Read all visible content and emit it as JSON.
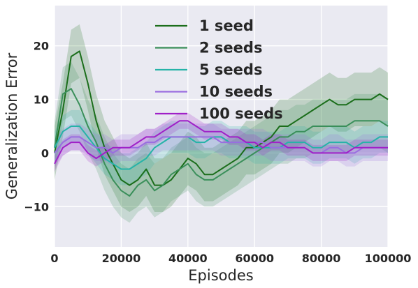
{
  "chart_data": {
    "type": "line",
    "title": "",
    "xlabel": "Episodes",
    "ylabel": "Generalization Error",
    "xlim": [
      0,
      100000
    ],
    "ylim": [
      -17.5,
      27.5
    ],
    "xticks": [
      0,
      20000,
      40000,
      60000,
      80000,
      100000
    ],
    "xtick_labels": [
      "0",
      "20000",
      "40000",
      "60000",
      "80000",
      "100000"
    ],
    "yticks": [
      -10,
      0,
      10,
      20
    ],
    "ytick_labels": [
      "−10",
      "0",
      "10",
      "20"
    ],
    "grid": true,
    "background": "#eaeaf2",
    "legend_position": "top-center",
    "x": [
      0,
      2500,
      5000,
      7500,
      10000,
      12500,
      15000,
      17500,
      20000,
      22500,
      25000,
      27500,
      30000,
      32500,
      35000,
      37500,
      40000,
      42500,
      45000,
      47500,
      50000,
      52500,
      55000,
      57500,
      60000,
      62500,
      65000,
      67500,
      70000,
      72500,
      75000,
      77500,
      80000,
      82500,
      85000,
      87500,
      90000,
      92500,
      95000,
      97500,
      100000
    ],
    "series": [
      {
        "name": "1 seed",
        "color": "#1b6e1b",
        "values": [
          0,
          8,
          18,
          19,
          13,
          6,
          1,
          -2,
          -5,
          -6,
          -5,
          -3,
          -6,
          -6,
          -5,
          -3,
          -1,
          -2,
          -4,
          -4,
          -3,
          -2,
          -1,
          1,
          1,
          2,
          3,
          5,
          5,
          6,
          7,
          8,
          9,
          10,
          9,
          9,
          10,
          10,
          10,
          11,
          10
        ],
        "band": 5
      },
      {
        "name": "2 seeds",
        "color": "#3a8f5a",
        "values": [
          1,
          11,
          12,
          9,
          5,
          2,
          -2,
          -5,
          -7,
          -8,
          -6,
          -5,
          -7,
          -6,
          -4,
          -3,
          -2,
          -4,
          -5,
          -5,
          -4,
          -3,
          -2,
          -1,
          0,
          1,
          2,
          3,
          3,
          4,
          4,
          5,
          5,
          5,
          5,
          5,
          6,
          6,
          6,
          6,
          5
        ],
        "band": 5
      },
      {
        "name": "5 seeds",
        "color": "#26b3a8",
        "values": [
          1,
          4,
          5,
          5,
          3,
          1,
          -1,
          -2,
          -3,
          -3,
          -2,
          -1,
          1,
          2,
          3,
          3,
          3,
          2,
          2,
          3,
          3,
          2,
          2,
          2,
          1,
          1,
          1,
          1,
          2,
          2,
          2,
          1,
          1,
          2,
          2,
          2,
          1,
          2,
          2,
          3,
          3
        ],
        "band": 3
      },
      {
        "name": "10 seeds",
        "color": "#9a6de0",
        "values": [
          0,
          2,
          3,
          3,
          2,
          1,
          1,
          0,
          1,
          1,
          1,
          2,
          2,
          3,
          3,
          3,
          3,
          3,
          3,
          3,
          2,
          2,
          2,
          2,
          2,
          2,
          1,
          1,
          1,
          1,
          1,
          0,
          0,
          1,
          1,
          0,
          0,
          1,
          1,
          1,
          1
        ],
        "band": 2.5
      },
      {
        "name": "100 seeds",
        "color": "#a020c8",
        "values": [
          -2,
          1,
          2,
          2,
          0,
          -1,
          0,
          1,
          1,
          1,
          2,
          3,
          3,
          4,
          5,
          6,
          6,
          5,
          4,
          4,
          4,
          3,
          3,
          2,
          2,
          1,
          2,
          2,
          1,
          1,
          1,
          0,
          0,
          0,
          0,
          0,
          1,
          1,
          1,
          1,
          1
        ],
        "band": 1.5
      }
    ]
  }
}
